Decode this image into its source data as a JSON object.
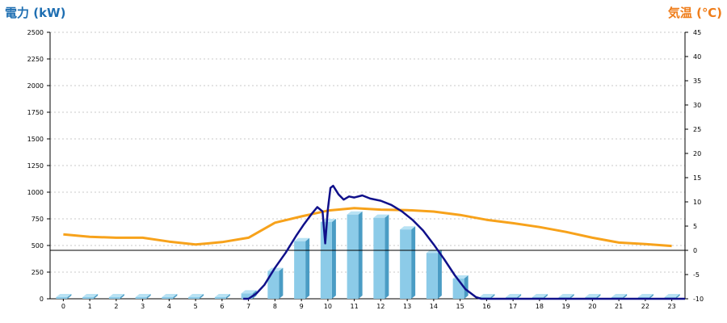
{
  "colors": {
    "left_axis_title": "#1f6fb2",
    "right_axis_title": "#ef7d1a",
    "bar_front": "#8ccbe8",
    "bar_side": "#4a9cc4",
    "bar_top": "#b8e2f4",
    "power_line": "#10108a",
    "temp_line": "#f7a21b",
    "grid": "#c8c8c8",
    "zero_line": "#000000"
  },
  "chart_data": {
    "type": "bar+line",
    "left_axis_title": "電力 (kW)",
    "right_axis_title": "気温 (℃)",
    "x": [
      0,
      1,
      2,
      3,
      4,
      5,
      6,
      7,
      8,
      9,
      10,
      11,
      12,
      13,
      14,
      15,
      16,
      17,
      18,
      19,
      20,
      21,
      22,
      23
    ],
    "x_tick_labels": [
      "0",
      "1",
      "2",
      "3",
      "4",
      "5",
      "6",
      "7",
      "8",
      "9",
      "10",
      "11",
      "12",
      "13",
      "14",
      "15",
      "16",
      "17",
      "18",
      "19",
      "20",
      "21",
      "22",
      "23"
    ],
    "y_left": {
      "range": [
        0,
        2500
      ],
      "ticks": [
        0,
        250,
        500,
        750,
        1000,
        1250,
        1500,
        1750,
        2000,
        2250,
        2500
      ],
      "tick_labels": [
        "0",
        "250",
        "500",
        "750",
        "1000",
        "1250",
        "1500",
        "1750",
        "2000",
        "2250",
        "2500"
      ]
    },
    "y_right": {
      "range": [
        -10,
        45
      ],
      "ticks": [
        -10,
        -5,
        0,
        5,
        10,
        15,
        20,
        25,
        30,
        35,
        40,
        45
      ],
      "tick_labels": [
        "-10",
        "-5",
        "0",
        "5",
        "10",
        "15",
        "20",
        "25",
        "30",
        "35",
        "40",
        "45"
      ]
    },
    "grid": true,
    "reference_line_right_axis": 0,
    "bars": {
      "axis": "left",
      "values": [
        0,
        0,
        0,
        0,
        0,
        0,
        0,
        50,
        260,
        540,
        720,
        790,
        760,
        650,
        430,
        190,
        0,
        0,
        0,
        0,
        0,
        0,
        0,
        0
      ]
    },
    "power_line": {
      "axis": "left",
      "x": [
        6.8,
        7.0,
        7.3,
        7.6,
        8.0,
        8.4,
        8.8,
        9.1,
        9.4,
        9.6,
        9.8,
        9.9,
        10.0,
        10.1,
        10.2,
        10.4,
        10.6,
        10.8,
        11.0,
        11.3,
        11.6,
        12.0,
        12.4,
        12.8,
        13.2,
        13.6,
        14.0,
        14.4,
        14.8,
        15.2,
        15.6,
        15.8,
        16.0,
        23.5
      ],
      "values": [
        0,
        0,
        50,
        130,
        290,
        430,
        590,
        700,
        800,
        860,
        820,
        520,
        840,
        1040,
        1060,
        980,
        930,
        960,
        950,
        970,
        940,
        920,
        880,
        820,
        740,
        640,
        510,
        370,
        220,
        90,
        15,
        0,
        0,
        0
      ]
    },
    "temperature_line": {
      "axis": "right",
      "values": [
        3.3,
        2.8,
        2.6,
        2.6,
        1.8,
        1.2,
        1.7,
        2.6,
        5.7,
        7.0,
        8.2,
        8.7,
        8.4,
        8.3,
        8.0,
        7.3,
        6.3,
        5.6,
        4.8,
        3.8,
        2.6,
        1.6,
        1.3,
        0.9
      ]
    }
  }
}
